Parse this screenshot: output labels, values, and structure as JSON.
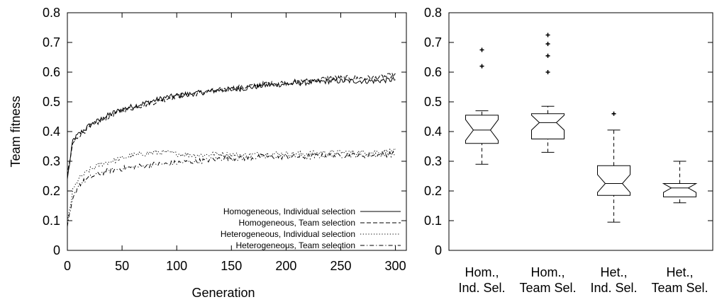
{
  "chart_data": [
    {
      "type": "line",
      "xlabel": "Generation",
      "ylabel": "Team fitness",
      "xlim": [
        0,
        310
      ],
      "ylim": [
        0,
        0.8
      ],
      "x_ticks": [
        0,
        50,
        100,
        150,
        200,
        250,
        300
      ],
      "y_ticks": [
        0,
        0.1,
        0.2,
        0.3,
        0.4,
        0.5,
        0.6,
        0.7,
        0.8
      ],
      "legend_position": "bottom-right",
      "grid": false,
      "series": [
        {
          "name": "Homogeneous, Individual selection",
          "style": "solid",
          "x": [
            0,
            5,
            10,
            20,
            30,
            40,
            50,
            60,
            70,
            80,
            90,
            100,
            120,
            140,
            160,
            180,
            200,
            220,
            240,
            260,
            280,
            300
          ],
          "y": [
            0.24,
            0.37,
            0.39,
            0.42,
            0.44,
            0.46,
            0.475,
            0.485,
            0.495,
            0.505,
            0.515,
            0.52,
            0.53,
            0.54,
            0.545,
            0.555,
            0.56,
            0.565,
            0.57,
            0.57,
            0.57,
            0.575
          ]
        },
        {
          "name": "Homogeneous, Team selection",
          "style": "dashed",
          "x": [
            0,
            5,
            10,
            20,
            30,
            40,
            50,
            60,
            70,
            80,
            90,
            100,
            120,
            140,
            160,
            180,
            200,
            220,
            240,
            260,
            280,
            300
          ],
          "y": [
            0.25,
            0.36,
            0.385,
            0.415,
            0.435,
            0.455,
            0.47,
            0.48,
            0.49,
            0.5,
            0.51,
            0.52,
            0.53,
            0.54,
            0.55,
            0.56,
            0.565,
            0.57,
            0.58,
            0.58,
            0.58,
            0.59
          ]
        },
        {
          "name": "Heterogeneous, Individual selection",
          "style": "dotted",
          "x": [
            0,
            5,
            10,
            20,
            30,
            40,
            50,
            60,
            70,
            80,
            90,
            100,
            120,
            140,
            160,
            180,
            200,
            220,
            240,
            260,
            280,
            300
          ],
          "y": [
            0.09,
            0.2,
            0.24,
            0.27,
            0.29,
            0.3,
            0.31,
            0.32,
            0.325,
            0.33,
            0.33,
            0.325,
            0.32,
            0.325,
            0.32,
            0.325,
            0.325,
            0.325,
            0.33,
            0.33,
            0.33,
            0.335
          ]
        },
        {
          "name": "Heterogeneous, Team selection",
          "style": "dashdot",
          "x": [
            0,
            5,
            10,
            20,
            30,
            40,
            50,
            60,
            70,
            80,
            90,
            100,
            120,
            140,
            160,
            180,
            200,
            220,
            240,
            260,
            280,
            300
          ],
          "y": [
            0.08,
            0.17,
            0.22,
            0.245,
            0.26,
            0.27,
            0.275,
            0.28,
            0.285,
            0.29,
            0.29,
            0.295,
            0.3,
            0.31,
            0.31,
            0.315,
            0.315,
            0.315,
            0.32,
            0.32,
            0.32,
            0.325
          ]
        }
      ]
    },
    {
      "type": "boxplot",
      "ylim": [
        0,
        0.8
      ],
      "y_ticks": [
        0,
        0.1,
        0.2,
        0.3,
        0.4,
        0.5,
        0.6,
        0.7,
        0.8
      ],
      "notched": true,
      "grid": false,
      "categories": [
        [
          "Hom.,",
          "Ind. Sel."
        ],
        [
          "Hom.,",
          "Team Sel."
        ],
        [
          "Het.,",
          "Ind. Sel."
        ],
        [
          "Het.,",
          "Team Sel."
        ]
      ],
      "boxes": [
        {
          "whisker_low": 0.29,
          "q1": 0.36,
          "median": 0.405,
          "q3": 0.455,
          "whisker_high": 0.47,
          "notch_low": 0.37,
          "notch_high": 0.44,
          "outliers": [
            0.62,
            0.675
          ]
        },
        {
          "whisker_low": 0.33,
          "q1": 0.375,
          "median": 0.43,
          "q3": 0.46,
          "whisker_high": 0.485,
          "notch_low": 0.405,
          "notch_high": 0.455,
          "outliers": [
            0.6,
            0.655,
            0.695,
            0.725
          ]
        },
        {
          "whisker_low": 0.095,
          "q1": 0.185,
          "median": 0.225,
          "q3": 0.285,
          "whisker_high": 0.405,
          "notch_low": 0.195,
          "notch_high": 0.255,
          "outliers": [
            0.46
          ]
        },
        {
          "whisker_low": 0.16,
          "q1": 0.18,
          "median": 0.21,
          "q3": 0.225,
          "whisker_high": 0.3,
          "notch_low": 0.195,
          "notch_high": 0.225,
          "outliers": []
        }
      ]
    }
  ]
}
